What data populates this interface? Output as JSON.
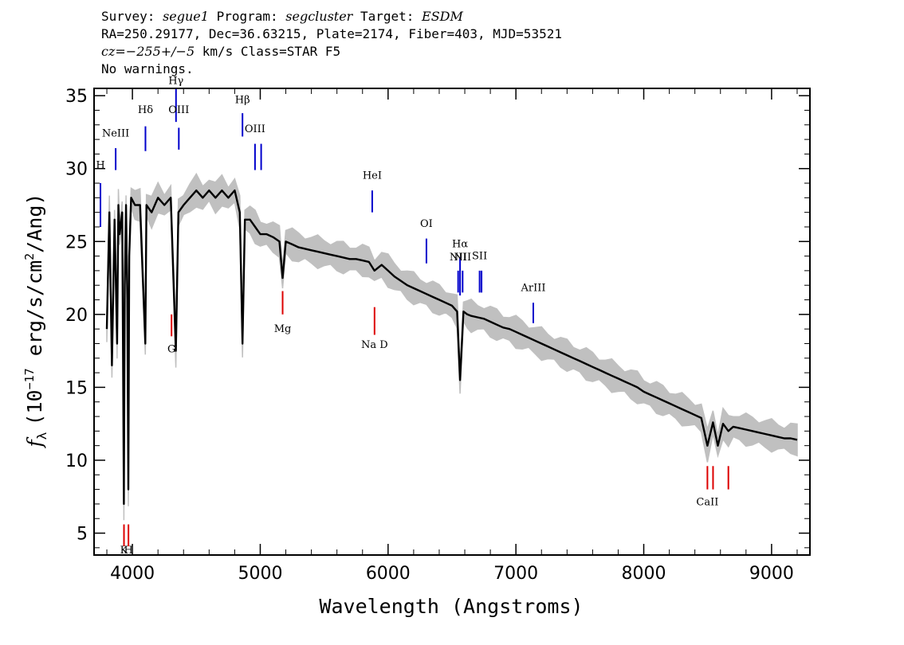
{
  "header": {
    "line1": {
      "survey_label": "Survey: ",
      "survey": "segue1",
      "program_label": " Program: ",
      "program": "segcluster",
      "target_label": " Target: ",
      "target": "ESDM"
    },
    "line2": "RA=250.29177, Dec=36.63215, Plate=2174, Fiber=403, MJD=53521",
    "line3": {
      "cz": "cz=−255+/−5",
      "rest": " km/s Class=STAR F5"
    },
    "line4": "No warnings."
  },
  "colors": {
    "flux": "#000000",
    "noise_band": "#c0c0c0",
    "emission_marker": "#0000cc",
    "absorption_marker": "#dd0000"
  },
  "chart_data": {
    "type": "line",
    "xlabel": "Wavelength (Angstroms)",
    "ylabel": "f_λ (10^-17 erg/s/cm^2/Ang)",
    "ylabel_parts": {
      "f": "f",
      "sub": "λ",
      "pre": "(10",
      "exp1": "−17",
      "mid": " erg/s/cm",
      "exp2": "2",
      "post": "/Ang)"
    },
    "xlim": [
      3700,
      9300
    ],
    "ylim": [
      3.5,
      35.5
    ],
    "xticks": [
      4000,
      5000,
      6000,
      7000,
      8000,
      9000
    ],
    "yticks": [
      5,
      10,
      15,
      20,
      25,
      30,
      35
    ],
    "grid": false,
    "series": [
      {
        "role": "flux",
        "x": [
          3800,
          3820,
          3840,
          3860,
          3880,
          3890,
          3900,
          3920,
          3933,
          3940,
          3950,
          3960,
          3968,
          3975,
          3990,
          4020,
          4060,
          4101,
          4110,
          4150,
          4200,
          4250,
          4300,
          4340,
          4360,
          4400,
          4450,
          4500,
          4550,
          4600,
          4650,
          4700,
          4750,
          4800,
          4840,
          4861,
          4880,
          4920,
          4960,
          5000,
          5050,
          5100,
          5150,
          5175,
          5200,
          5250,
          5300,
          5350,
          5400,
          5450,
          5500,
          5550,
          5600,
          5650,
          5700,
          5750,
          5800,
          5850,
          5893,
          5950,
          6000,
          6050,
          6100,
          6150,
          6200,
          6250,
          6300,
          6350,
          6400,
          6450,
          6500,
          6540,
          6563,
          6590,
          6620,
          6650,
          6700,
          6750,
          6800,
          6850,
          6900,
          6950,
          7000,
          7050,
          7100,
          7150,
          7200,
          7250,
          7300,
          7350,
          7400,
          7450,
          7500,
          7550,
          7600,
          7650,
          7700,
          7750,
          7800,
          7850,
          7900,
          7950,
          8000,
          8050,
          8100,
          8150,
          8200,
          8250,
          8300,
          8350,
          8400,
          8450,
          8498,
          8542,
          8580,
          8620,
          8662,
          8700,
          8750,
          8800,
          8850,
          8900,
          8950,
          9000,
          9050,
          9100,
          9150,
          9200
        ],
        "y": [
          19.0,
          27.0,
          16.5,
          26.5,
          18.0,
          27.5,
          25.5,
          27.0,
          7.0,
          22.0,
          27.5,
          21.0,
          8.0,
          24.0,
          28.0,
          27.5,
          27.5,
          18.0,
          27.5,
          27.0,
          28.0,
          27.5,
          28.0,
          17.5,
          27.0,
          27.5,
          28.0,
          28.5,
          28.0,
          28.5,
          28.0,
          28.5,
          28.0,
          28.5,
          27.0,
          18.0,
          26.5,
          26.5,
          26.0,
          25.5,
          25.5,
          25.3,
          25.0,
          22.5,
          25.0,
          24.8,
          24.6,
          24.5,
          24.4,
          24.3,
          24.2,
          24.1,
          24.0,
          23.9,
          23.8,
          23.8,
          23.7,
          23.6,
          23.0,
          23.4,
          23.0,
          22.6,
          22.3,
          22.0,
          21.8,
          21.6,
          21.4,
          21.2,
          21.0,
          20.8,
          20.6,
          20.2,
          15.5,
          20.2,
          20.0,
          19.9,
          19.8,
          19.7,
          19.5,
          19.3,
          19.1,
          19.0,
          18.8,
          18.6,
          18.4,
          18.2,
          18.0,
          17.8,
          17.6,
          17.4,
          17.2,
          17.0,
          16.8,
          16.6,
          16.4,
          16.2,
          16.0,
          15.8,
          15.6,
          15.4,
          15.2,
          15.0,
          14.7,
          14.5,
          14.3,
          14.1,
          13.9,
          13.7,
          13.5,
          13.3,
          13.1,
          12.9,
          11.0,
          12.6,
          11.0,
          12.5,
          12.0,
          12.3,
          12.2,
          12.1,
          12.0,
          11.9,
          11.8,
          11.7,
          11.6,
          11.5,
          11.5,
          11.4
        ]
      }
    ],
    "emission_lines": [
      {
        "label": "H",
        "x": 3750,
        "y_bottom": 26.0,
        "y_top": 29.0,
        "label_y": 30.0
      },
      {
        "label": "NeIII",
        "x": 3869,
        "y_bottom": 29.9,
        "y_top": 31.4,
        "label_y": 32.2
      },
      {
        "label": "Hδ",
        "x": 4102,
        "y_bottom": 31.2,
        "y_top": 32.9,
        "label_y": 33.8
      },
      {
        "label": "Hγ",
        "x": 4341,
        "y_bottom": 33.2,
        "y_top": 35.5,
        "label_y": 35.8
      },
      {
        "label": "OIII",
        "x": 4363,
        "y_bottom": 31.3,
        "y_top": 32.8,
        "label_y": 33.8
      },
      {
        "label": "Hβ",
        "x": 4861,
        "y_bottom": 32.2,
        "y_top": 33.8,
        "label_y": 34.5
      },
      {
        "label": "OIII",
        "x": 4959,
        "y_bottom": 29.9,
        "y_top": 31.7,
        "label_y": 32.5
      },
      {
        "label": "",
        "x": 5007,
        "y_bottom": 29.9,
        "y_top": 31.7,
        "label_y": 0
      },
      {
        "label": "HeI",
        "x": 5876,
        "y_bottom": 27.0,
        "y_top": 28.5,
        "label_y": 29.3
      },
      {
        "label": "OI",
        "x": 6300,
        "y_bottom": 23.5,
        "y_top": 25.2,
        "label_y": 26.0
      },
      {
        "label": "NII",
        "x": 6548,
        "y_bottom": 21.5,
        "y_top": 23.0,
        "label_y": 23.7
      },
      {
        "label": "Hα",
        "x": 6563,
        "y_bottom": 21.3,
        "y_top": 23.9,
        "label_y": 24.6
      },
      {
        "label": "NII",
        "x": 6583,
        "y_bottom": 21.5,
        "y_top": 23.0,
        "label_y": 23.7
      },
      {
        "label": "SII",
        "x": 6716,
        "y_bottom": 21.5,
        "y_top": 23.0,
        "label_y": 23.8
      },
      {
        "label": "",
        "x": 6731,
        "y_bottom": 21.5,
        "y_top": 23.0,
        "label_y": 0
      },
      {
        "label": "ArIII",
        "x": 7136,
        "y_bottom": 19.4,
        "y_top": 20.8,
        "label_y": 21.6
      }
    ],
    "absorption_lines": [
      {
        "label": "K",
        "x": 3934,
        "y_bottom": 4.1,
        "y_top": 5.6,
        "label_y": 3.6
      },
      {
        "label": "H",
        "x": 3969,
        "y_bottom": 4.1,
        "y_top": 5.6,
        "label_y": 3.6
      },
      {
        "label": "G",
        "x": 4306,
        "y_bottom": 18.5,
        "y_top": 20.0,
        "label_y": 17.4
      },
      {
        "label": "Mg",
        "x": 5175,
        "y_bottom": 20.0,
        "y_top": 21.6,
        "label_y": 18.8
      },
      {
        "label": "Na D",
        "x": 5894,
        "y_bottom": 18.6,
        "y_top": 20.5,
        "label_y": 17.7
      },
      {
        "label": "CaII",
        "x": 8498,
        "y_bottom": 8.0,
        "y_top": 9.6,
        "label_y": 6.9
      },
      {
        "label": "",
        "x": 8542,
        "y_bottom": 8.0,
        "y_top": 9.6,
        "label_y": 0
      },
      {
        "label": "",
        "x": 8662,
        "y_bottom": 8.0,
        "y_top": 9.6,
        "label_y": 0
      }
    ]
  }
}
